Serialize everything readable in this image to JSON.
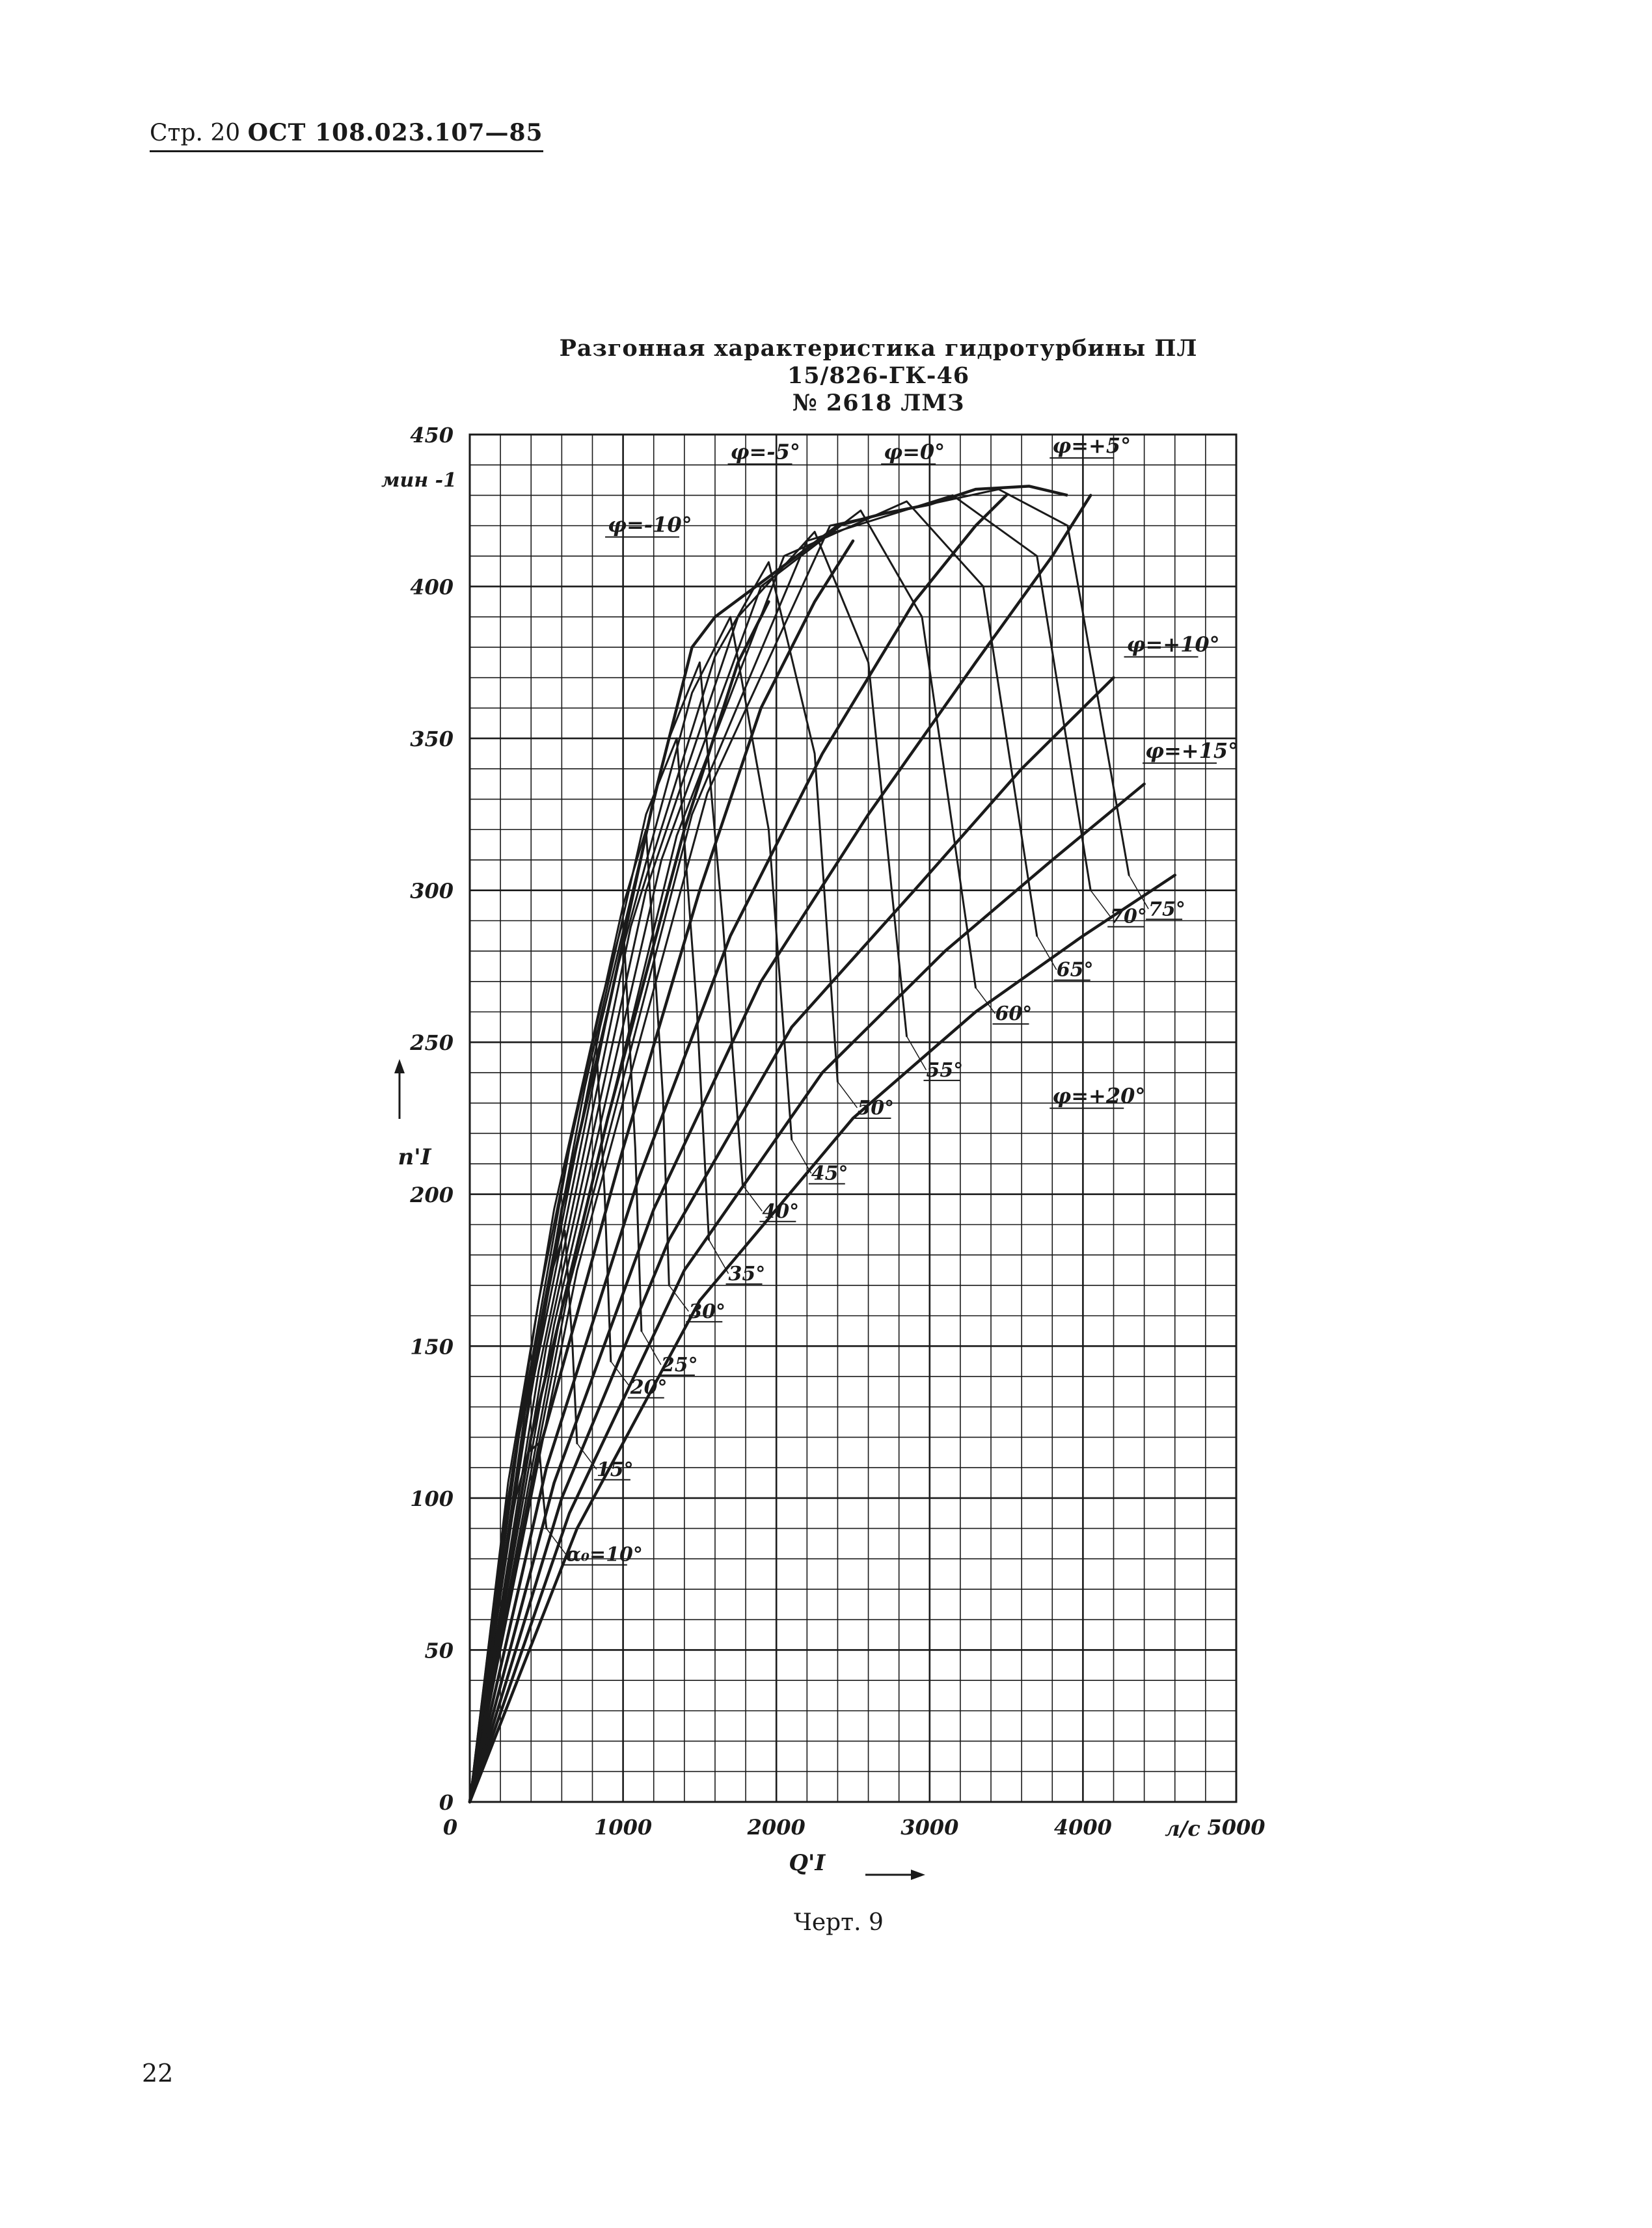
{
  "header": {
    "page_label": "Стр. 20",
    "standard": "ОСТ 108.023.107—85"
  },
  "chart_data": {
    "type": "line",
    "title": "Разгонная характеристика гидротурбины ПЛ 15/826-ГК-46",
    "subtitle": "№ 2618 ЛМЗ",
    "xlabel": "Q'I",
    "xunit": "л/с",
    "ylabel": "n'I",
    "yunit": "мин -1",
    "xlim": [
      0,
      5000
    ],
    "ylim": [
      0,
      450
    ],
    "xticks": [
      0,
      1000,
      2000,
      3000,
      4000,
      5000
    ],
    "xtick_labels": [
      "0",
      "1000",
      "2000",
      "3000",
      "4000",
      "5000"
    ],
    "yticks": [
      0,
      50,
      100,
      150,
      200,
      250,
      300,
      350,
      400,
      450
    ],
    "ytick_labels": [
      "0",
      "50",
      "100",
      "150",
      "200",
      "250",
      "300",
      "350",
      "400",
      "450"
    ],
    "grid": true,
    "grid_step": {
      "x": 200,
      "y": 10
    },
    "envelope": [
      [
        0,
        0
      ],
      [
        300,
        105
      ],
      [
        600,
        195
      ],
      [
        900,
        260
      ],
      [
        1200,
        330
      ],
      [
        1450,
        380
      ],
      [
        1600,
        390
      ],
      [
        2000,
        405
      ],
      [
        2400,
        420
      ],
      [
        2700,
        424
      ],
      [
        3000,
        427
      ],
      [
        3300,
        432
      ],
      [
        3650,
        433
      ],
      [
        3900,
        430
      ]
    ],
    "gate_curves": [
      {
        "label": "α₀=10°",
        "points": [
          [
            0,
            0
          ],
          [
            150,
            60
          ],
          [
            300,
            100
          ],
          [
            380,
            115
          ],
          [
            450,
            118
          ],
          [
            480,
            100
          ],
          [
            500,
            90
          ]
        ]
      },
      {
        "label": "15°",
        "points": [
          [
            0,
            0
          ],
          [
            180,
            75
          ],
          [
            350,
            130
          ],
          [
            520,
            172
          ],
          [
            620,
            188
          ],
          [
            670,
            150
          ],
          [
            700,
            118
          ]
        ]
      },
      {
        "label": "20°",
        "points": [
          [
            0,
            0
          ],
          [
            220,
            90
          ],
          [
            450,
            165
          ],
          [
            700,
            228
          ],
          [
            820,
            254
          ],
          [
            880,
            200
          ],
          [
            920,
            145
          ]
        ]
      },
      {
        "label": "25°",
        "points": [
          [
            0,
            0
          ],
          [
            250,
            105
          ],
          [
            550,
            195
          ],
          [
            850,
            262
          ],
          [
            1000,
            290
          ],
          [
            1080,
            215
          ],
          [
            1120,
            155
          ]
        ]
      },
      {
        "label": "30°",
        "points": [
          [
            0,
            0
          ],
          [
            280,
            110
          ],
          [
            650,
            215
          ],
          [
            1000,
            295
          ],
          [
            1150,
            320
          ],
          [
            1260,
            232
          ],
          [
            1300,
            170
          ]
        ]
      },
      {
        "label": "35°",
        "points": [
          [
            0,
            0
          ],
          [
            320,
            120
          ],
          [
            750,
            235
          ],
          [
            1150,
            325
          ],
          [
            1350,
            350
          ],
          [
            1480,
            262
          ],
          [
            1560,
            185
          ]
        ]
      },
      {
        "label": "40°",
        "points": [
          [
            0,
            0
          ],
          [
            360,
            128
          ],
          [
            850,
            255
          ],
          [
            1300,
            350
          ],
          [
            1500,
            375
          ],
          [
            1650,
            290
          ],
          [
            1780,
            203
          ]
        ]
      },
      {
        "label": "45°",
        "points": [
          [
            0,
            0
          ],
          [
            400,
            135
          ],
          [
            950,
            272
          ],
          [
            1450,
            365
          ],
          [
            1700,
            390
          ],
          [
            1950,
            320
          ],
          [
            2100,
            218
          ]
        ]
      },
      {
        "label": "50°",
        "points": [
          [
            0,
            0
          ],
          [
            450,
            142
          ],
          [
            1050,
            288
          ],
          [
            1600,
            377
          ],
          [
            1950,
            408
          ],
          [
            2250,
            345
          ],
          [
            2400,
            237
          ]
        ]
      },
      {
        "label": "55°",
        "points": [
          [
            0,
            0
          ],
          [
            500,
            150
          ],
          [
            1150,
            300
          ],
          [
            1750,
            390
          ],
          [
            2250,
            418
          ],
          [
            2600,
            375
          ],
          [
            2850,
            252
          ]
        ]
      },
      {
        "label": "60°",
        "points": [
          [
            0,
            0
          ],
          [
            550,
            157
          ],
          [
            1250,
            310
          ],
          [
            1900,
            400
          ],
          [
            2550,
            425
          ],
          [
            2950,
            390
          ],
          [
            3300,
            268
          ]
        ]
      },
      {
        "label": "65°",
        "points": [
          [
            0,
            0
          ],
          [
            600,
            163
          ],
          [
            1350,
            318
          ],
          [
            2050,
            410
          ],
          [
            2850,
            428
          ],
          [
            3350,
            400
          ],
          [
            3700,
            285
          ]
        ]
      },
      {
        "label": "70°",
        "points": [
          [
            0,
            0
          ],
          [
            650,
            170
          ],
          [
            1450,
            325
          ],
          [
            2200,
            415
          ],
          [
            3150,
            430
          ],
          [
            3700,
            410
          ],
          [
            4050,
            300
          ]
        ]
      },
      {
        "label": "75°",
        "points": [
          [
            0,
            0
          ],
          [
            700,
            175
          ],
          [
            1550,
            332
          ],
          [
            2350,
            420
          ],
          [
            3450,
            432
          ],
          [
            3900,
            420
          ],
          [
            4300,
            305
          ]
        ]
      }
    ],
    "blade_curves": [
      {
        "label": "φ=-10°",
        "points": [
          [
            0,
            0
          ],
          [
            400,
            120
          ],
          [
            900,
            225
          ],
          [
            1400,
            320
          ],
          [
            1750,
            375
          ],
          [
            1950,
            395
          ]
        ]
      },
      {
        "label": "φ=-5°",
        "points": [
          [
            0,
            0
          ],
          [
            450,
            115
          ],
          [
            1000,
            215
          ],
          [
            1500,
            300
          ],
          [
            1900,
            360
          ],
          [
            2250,
            395
          ],
          [
            2500,
            415
          ]
        ]
      },
      {
        "label": "φ=0°",
        "points": [
          [
            0,
            0
          ],
          [
            500,
            110
          ],
          [
            1100,
            205
          ],
          [
            1700,
            285
          ],
          [
            2300,
            345
          ],
          [
            2900,
            395
          ],
          [
            3300,
            420
          ],
          [
            3500,
            430
          ]
        ]
      },
      {
        "label": "φ=+5°",
        "points": [
          [
            0,
            0
          ],
          [
            550,
            105
          ],
          [
            1200,
            195
          ],
          [
            1900,
            270
          ],
          [
            2600,
            325
          ],
          [
            3300,
            375
          ],
          [
            3800,
            410
          ],
          [
            4050,
            430
          ]
        ]
      },
      {
        "label": "φ=+10°",
        "points": [
          [
            0,
            0
          ],
          [
            600,
            100
          ],
          [
            1300,
            185
          ],
          [
            2100,
            255
          ],
          [
            2900,
            300
          ],
          [
            3600,
            340
          ],
          [
            4200,
            370
          ]
        ]
      },
      {
        "label": "φ=+15°",
        "points": [
          [
            0,
            0
          ],
          [
            650,
            95
          ],
          [
            1400,
            175
          ],
          [
            2300,
            240
          ],
          [
            3100,
            280
          ],
          [
            3800,
            310
          ],
          [
            4400,
            335
          ]
        ]
      },
      {
        "label": "φ=+20°",
        "points": [
          [
            0,
            0
          ],
          [
            700,
            90
          ],
          [
            1500,
            165
          ],
          [
            2500,
            225
          ],
          [
            3300,
            260
          ],
          [
            4000,
            285
          ],
          [
            4600,
            305
          ]
        ]
      }
    ],
    "line_color": "#1a1a1a"
  },
  "caption": "Черт. 9",
  "page_number": "22"
}
